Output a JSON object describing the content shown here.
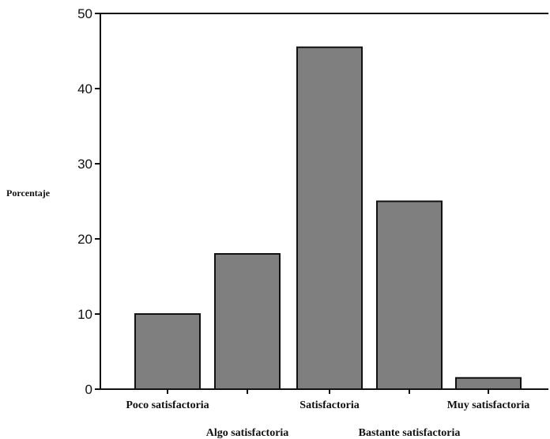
{
  "chart_data": {
    "type": "bar",
    "ylabel": "Porcentaje",
    "xlabel": "",
    "ylim": [
      0,
      50
    ],
    "yticks": [
      "0",
      "10",
      "20",
      "30",
      "40",
      "50"
    ],
    "categories": [
      "Poco satisfactoria",
      "Algo satisfactoria",
      "Satisfactoria",
      "Bastante satisfactoria",
      "Muy satisfactoria"
    ],
    "values": [
      10,
      18,
      45.5,
      25,
      1.5
    ],
    "bar_color": "#7f7f7f",
    "grid": false
  }
}
